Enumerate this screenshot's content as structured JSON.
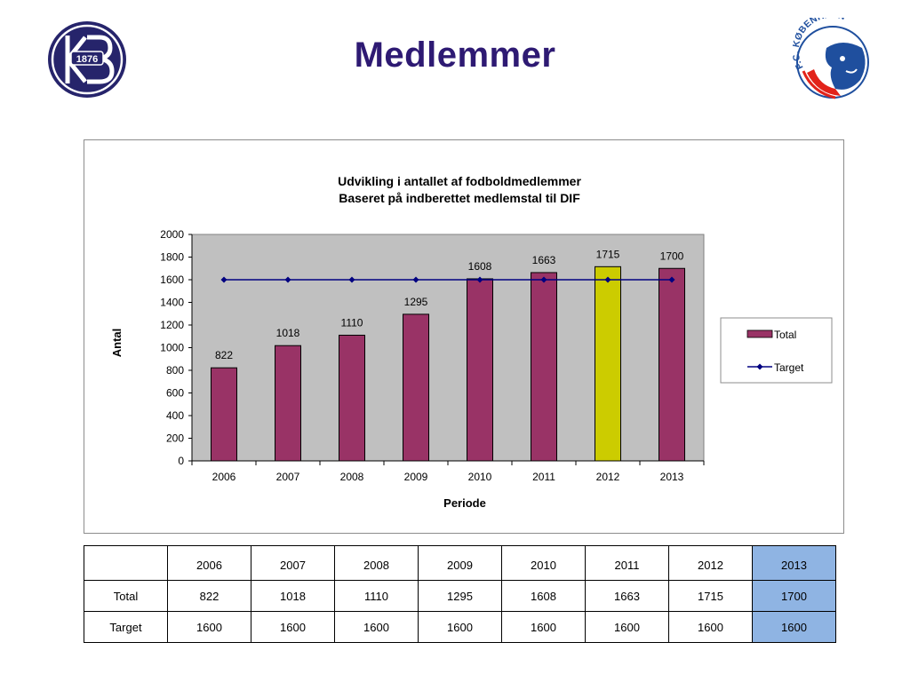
{
  "title": "Medlemmer",
  "logos": {
    "left": {
      "text": "1876",
      "color": "#26246b"
    },
    "right": {
      "text": "F.C. KØBENHAVN",
      "color": "#1f4f9e",
      "accent": "#e2231a"
    }
  },
  "chart_data": {
    "type": "bar",
    "title": "Udvikling i antallet af fodboldmedlemmer",
    "subtitle": "Baseret på indberettet medlemstal til DIF",
    "xlabel": "Periode",
    "ylabel": "Antal",
    "categories": [
      "2006",
      "2007",
      "2008",
      "2009",
      "2010",
      "2011",
      "2012",
      "2013"
    ],
    "series": [
      {
        "name": "Total",
        "type": "bar",
        "values": [
          822,
          1018,
          1110,
          1295,
          1608,
          1663,
          1715,
          1700
        ],
        "color": "#993366",
        "highlight_index": 6,
        "highlight_color": "#cccc00"
      },
      {
        "name": "Target",
        "type": "line",
        "values": [
          1600,
          1600,
          1600,
          1600,
          1600,
          1600,
          1600,
          1600
        ],
        "color": "#000080"
      }
    ],
    "ylim": [
      0,
      2000
    ],
    "yticks": [
      "0",
      "200",
      "400",
      "600",
      "800",
      "1000",
      "1200",
      "1400",
      "1600",
      "1800",
      "2000"
    ],
    "ytick_values": [
      0,
      200,
      400,
      600,
      800,
      1000,
      1200,
      1400,
      1600,
      1800,
      2000
    ],
    "data_labels": [
      "822",
      "1018",
      "1110",
      "1295",
      "1608",
      "1663",
      "1715",
      "1700"
    ],
    "grid": false,
    "plot_background": "#c0c0c0",
    "legend": {
      "placement": "right",
      "entries": [
        "Total",
        "Target"
      ]
    }
  },
  "table": {
    "header": [
      "",
      "2006",
      "2007",
      "2008",
      "2009",
      "2010",
      "2011",
      "2012",
      "2013"
    ],
    "rows": [
      [
        "Total",
        "822",
        "1018",
        "1110",
        "1295",
        "1608",
        "1663",
        "1715",
        "1700"
      ],
      [
        "Target",
        "1600",
        "1600",
        "1600",
        "1600",
        "1600",
        "1600",
        "1600",
        "1600"
      ]
    ],
    "highlight_column": 7,
    "highlight_color": "#8fb4e3"
  }
}
